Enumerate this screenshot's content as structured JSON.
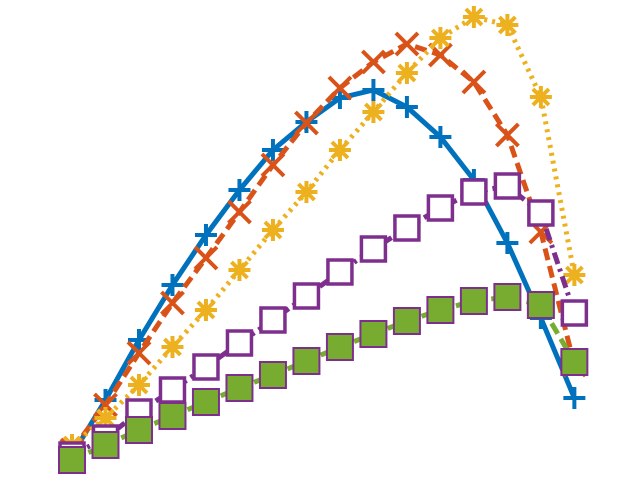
{
  "chart_data": {
    "type": "line",
    "x": [
      0,
      1,
      2,
      3,
      4,
      5,
      6,
      7,
      8,
      9,
      10,
      11,
      12,
      13,
      14,
      15
    ],
    "xlim": [
      -2.15,
      16.9
    ],
    "ylim": [
      0,
      478
    ],
    "series": [
      {
        "color": "#0072bd",
        "marker": "plus",
        "dash": "solid",
        "values": [
          23,
          78,
          138,
          193,
          243,
          288,
          328,
          356,
          380,
          388,
          371,
          341,
          298,
          235,
          160,
          80
        ]
      },
      {
        "color": "#d95319",
        "marker": "x",
        "dash": "dashed",
        "values": [
          28,
          73,
          125,
          175,
          220,
          266,
          313,
          355,
          390,
          416,
          434,
          423,
          396,
          343,
          246,
          113
        ]
      },
      {
        "color": "#edb120",
        "marker": "star",
        "dash": "dotted",
        "values": [
          33,
          60,
          93,
          131,
          168,
          208,
          248,
          286,
          328,
          366,
          405,
          440,
          461,
          453,
          381,
          203
        ]
      },
      {
        "color": "#7e2f8e",
        "marker": "square",
        "dash": "dashdot",
        "values": [
          23,
          40,
          66,
          88,
          111,
          135,
          158,
          182,
          206,
          229,
          250,
          270,
          286,
          292,
          265,
          165
        ]
      },
      {
        "color": "#77ac30",
        "marker": "filled-square",
        "dash": "dashed",
        "values": [
          18,
          33,
          48,
          62,
          76,
          90,
          103,
          117,
          131,
          144,
          157,
          168,
          177,
          181,
          173,
          116
        ]
      }
    ]
  }
}
